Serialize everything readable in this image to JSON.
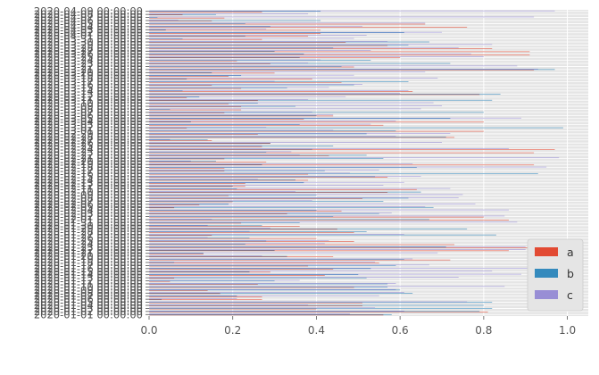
{
  "chart_data": {
    "type": "bar",
    "orientation": "horizontal",
    "style": "ggplot",
    "x_ticks": [
      "0.0",
      "0.2",
      "0.4",
      "0.6",
      "0.8",
      "1.0"
    ],
    "xlim": [
      0,
      1.05
    ],
    "grid": true,
    "legend_position": "bottom-right",
    "categories": [
      "2020-01-01 00:00:00",
      "2020-01-02 00:00:00",
      "2020-01-03 00:00:00",
      "2020-01-04 00:00:00",
      "2020-01-05 00:00:00",
      "2020-01-06 00:00:00",
      "2020-01-07 00:00:00",
      "2020-01-08 00:00:00",
      "2020-01-09 00:00:00",
      "2020-01-10 00:00:00",
      "2020-01-11 00:00:00",
      "2020-01-12 00:00:00",
      "2020-01-13 00:00:00",
      "2020-01-14 00:00:00",
      "2020-01-15 00:00:00",
      "2020-01-16 00:00:00",
      "2020-01-17 00:00:00",
      "2020-01-18 00:00:00",
      "2020-01-19 00:00:00",
      "2020-01-20 00:00:00",
      "2020-01-21 00:00:00",
      "2020-01-22 00:00:00",
      "2020-01-23 00:00:00",
      "2020-01-24 00:00:00",
      "2020-01-25 00:00:00",
      "2020-01-26 00:00:00",
      "2020-01-27 00:00:00",
      "2020-01-28 00:00:00",
      "2020-01-29 00:00:00",
      "2020-01-30 00:00:00",
      "2020-01-31 00:00:00",
      "2020-02-01 00:00:00",
      "2020-02-02 00:00:00",
      "2020-02-03 00:00:00",
      "2020-02-04 00:00:00",
      "2020-02-05 00:00:00",
      "2020-02-06 00:00:00",
      "2020-02-07 00:00:00",
      "2020-02-08 00:00:00",
      "2020-02-09 00:00:00",
      "2020-02-10 00:00:00",
      "2020-02-11 00:00:00",
      "2020-02-12 00:00:00",
      "2020-02-13 00:00:00",
      "2020-02-14 00:00:00",
      "2020-02-15 00:00:00",
      "2020-02-16 00:00:00",
      "2020-02-17 00:00:00",
      "2020-02-18 00:00:00",
      "2020-02-19 00:00:00",
      "2020-02-20 00:00:00",
      "2020-02-21 00:00:00",
      "2020-02-22 00:00:00",
      "2020-02-23 00:00:00",
      "2020-02-24 00:00:00",
      "2020-02-25 00:00:00",
      "2020-02-26 00:00:00",
      "2020-02-27 00:00:00",
      "2020-02-28 00:00:00",
      "2020-02-29 00:00:00",
      "2020-03-01 00:00:00",
      "2020-03-02 00:00:00",
      "2020-03-03 00:00:00",
      "2020-03-04 00:00:00",
      "2020-03-05 00:00:00",
      "2020-03-06 00:00:00",
      "2020-03-07 00:00:00",
      "2020-03-08 00:00:00",
      "2020-03-09 00:00:00",
      "2020-03-10 00:00:00",
      "2020-03-11 00:00:00",
      "2020-03-12 00:00:00",
      "2020-03-13 00:00:00",
      "2020-03-14 00:00:00",
      "2020-03-15 00:00:00",
      "2020-03-16 00:00:00",
      "2020-03-17 00:00:00",
      "2020-03-18 00:00:00",
      "2020-03-19 00:00:00",
      "2020-03-20 00:00:00",
      "2020-03-21 00:00:00",
      "2020-03-22 00:00:00",
      "2020-03-23 00:00:00",
      "2020-03-24 00:00:00",
      "2020-03-25 00:00:00",
      "2020-03-26 00:00:00",
      "2020-03-27 00:00:00",
      "2020-03-28 00:00:00",
      "2020-03-29 00:00:00",
      "2020-03-30 00:00:00",
      "2020-03-31 00:00:00",
      "2020-04-01 00:00:00",
      "2020-04-02 00:00:00",
      "2020-04-03 00:00:00",
      "2020-04-04 00:00:00",
      "2020-04-05 00:00:00",
      "2020-04-06 00:00:00",
      "2020-04-07 00:00:00",
      "2020-04-08 00:00:00",
      "2020-04-09 00:00:00"
    ],
    "series": [
      {
        "name": "a",
        "color": "#e24a33",
        "values": [
          0.56,
          0.81,
          0.4,
          0.51,
          0.51,
          0.27,
          0.27,
          0.17,
          0.14,
          0.49,
          0.26,
          0.05,
          0.06,
          0.42,
          0.29,
          0.44,
          0.38,
          0.55,
          0.72,
          0.44,
          0.13,
          0.86,
          0.99,
          0.73,
          0.49,
          0.4,
          0.15,
          0.49,
          0.45,
          0.36,
          0.22,
          0.86,
          0.8,
          0.33,
          0.46,
          0.06,
          0.12,
          0.2,
          0.51,
          0.19,
          0.57,
          0.64,
          0.23,
          0.23,
          0.38,
          0.57,
          0.38,
          0.18,
          0.18,
          0.92,
          0.28,
          0.18,
          0.43,
          0.92,
          0.97,
          0.27,
          0.29,
          0.15,
          0.73,
          0.26,
          0.8,
          0.09,
          0.56,
          0.8,
          0.37,
          0.44,
          0.18,
          0.22,
          0.22,
          0.19,
          0.26,
          0.09,
          0.79,
          0.63,
          0.22,
          0.15,
          0.46,
          0.39,
          0.19,
          0.3,
          0.92,
          0.49,
          0.29,
          0.21,
          0.6,
          0.91,
          0.91,
          0.82,
          0.57,
          0.47,
          0.27,
          0.38,
          0.41,
          0.41,
          0.76,
          0.66,
          0.15,
          0.18,
          0.08,
          0.27
        ]
      },
      {
        "name": "b",
        "color": "#348abd",
        "values": [
          0.58,
          0.79,
          0.82,
          0.8,
          0.82,
          0.03,
          0.21,
          0.63,
          0.6,
          0.57,
          0.57,
          0.3,
          0.52,
          0.5,
          0.24,
          0.53,
          0.59,
          0.06,
          0.61,
          0.33,
          0.13,
          0.3,
          0.71,
          0.23,
          0.28,
          0.24,
          0.83,
          0.52,
          0.76,
          0.27,
          0.36,
          0.67,
          0.44,
          0.55,
          0.4,
          0.68,
          0.19,
          0.56,
          0.62,
          0.4,
          0.65,
          0.21,
          0.2,
          0.37,
          0.35,
          0.54,
          0.93,
          0.42,
          0.64,
          0.27,
          0.16,
          0.56,
          0.52,
          0.28,
          0.39,
          0.44,
          0.29,
          0.14,
          0.71,
          0.52,
          0.59,
          0.99,
          0.36,
          0.1,
          0.72,
          0.4,
          0.8,
          0.05,
          0.35,
          0.26,
          0.82,
          0.12,
          0.84,
          0.08,
          0.33,
          0.49,
          0.62,
          0.09,
          0.22,
          0.15,
          0.97,
          0.46,
          0.72,
          0.53,
          0.36,
          0.37,
          0.3,
          0.44,
          0.62,
          0.67,
          0.08,
          0.23,
          0.61,
          0.04,
          0.29,
          0.23,
          0.41,
          0.02,
          0.16,
          0.41
        ]
      },
      {
        "name": "c",
        "color": "#988ed5",
        "values": [
          0.48,
          0.61,
          0.54,
          0.38,
          0.76,
          0.21,
          0.55,
          0.61,
          0.59,
          0.85,
          0.59,
          0.36,
          0.74,
          0.89,
          0.82,
          0.93,
          0.67,
          0.54,
          0.63,
          0.27,
          0.69,
          0.9,
          0.9,
          0.42,
          0.43,
          0.14,
          0.61,
          0.24,
          0.29,
          0.14,
          0.88,
          0.15,
          0.85,
          0.58,
          0.86,
          0.66,
          0.78,
          0.39,
          0.74,
          0.75,
          0.35,
          0.72,
          0.56,
          0.61,
          0.26,
          0.65,
          0.48,
          0.55,
          0.95,
          0.63,
          0.1,
          0.98,
          0.36,
          0.34,
          0.86,
          0.27,
          0.7,
          0.05,
          0.59,
          0.72,
          0.44,
          0.28,
          0.53,
          0.59,
          0.89,
          0.44,
          0.39,
          0.65,
          0.7,
          0.68,
          0.38,
          0.47,
          0.6,
          0.62,
          0.43,
          0.51,
          0.3,
          0.69,
          0.49,
          0.66,
          0.93,
          0.88,
          0.38,
          0.41,
          0.8,
          0.77,
          0.53,
          0.74,
          0.82,
          0.57,
          0.49,
          0.52,
          0.7,
          0.28,
          0.51,
          0.66,
          0.07,
          0.92,
          0.38,
          0.97
        ]
      }
    ]
  }
}
